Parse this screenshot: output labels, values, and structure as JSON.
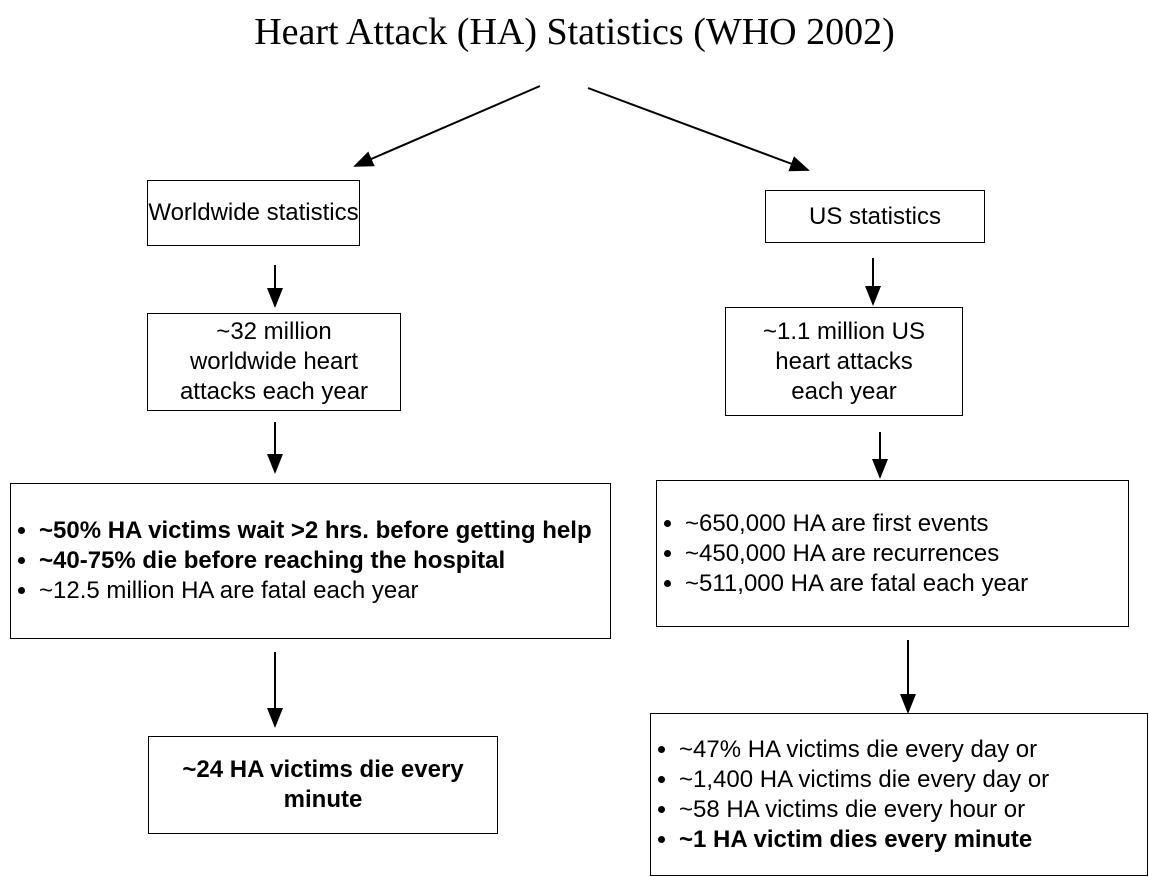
{
  "title": "Heart Attack (HA) Statistics (WHO 2002)",
  "nodes": [
    {
      "label": "Worldwide statistics"
    },
    {
      "label": "US statistics"
    },
    {
      "label": "~32 million worldwide heart attacks each year"
    },
    {
      "label": "~1.1 million US heart attacks each year"
    },
    {
      "items": [
        "~50% HA victims wait >2 hrs. before getting help",
        "~40-75% die before reaching the hospital",
        "~12.5 million HA are fatal each year"
      ]
    },
    {
      "items": [
        "~650,000 HA are first events",
        "~450,000 HA are recurrences",
        "~511,000 HA are fatal each year"
      ]
    },
    {
      "label": "~24 HA victims die every minute"
    },
    {
      "items": [
        "~47% HA victims die every day or",
        "~1,400 HA victims die every day or",
        "~58 HA victims die every hour or",
        "~1 HA victim dies every minute"
      ]
    }
  ]
}
